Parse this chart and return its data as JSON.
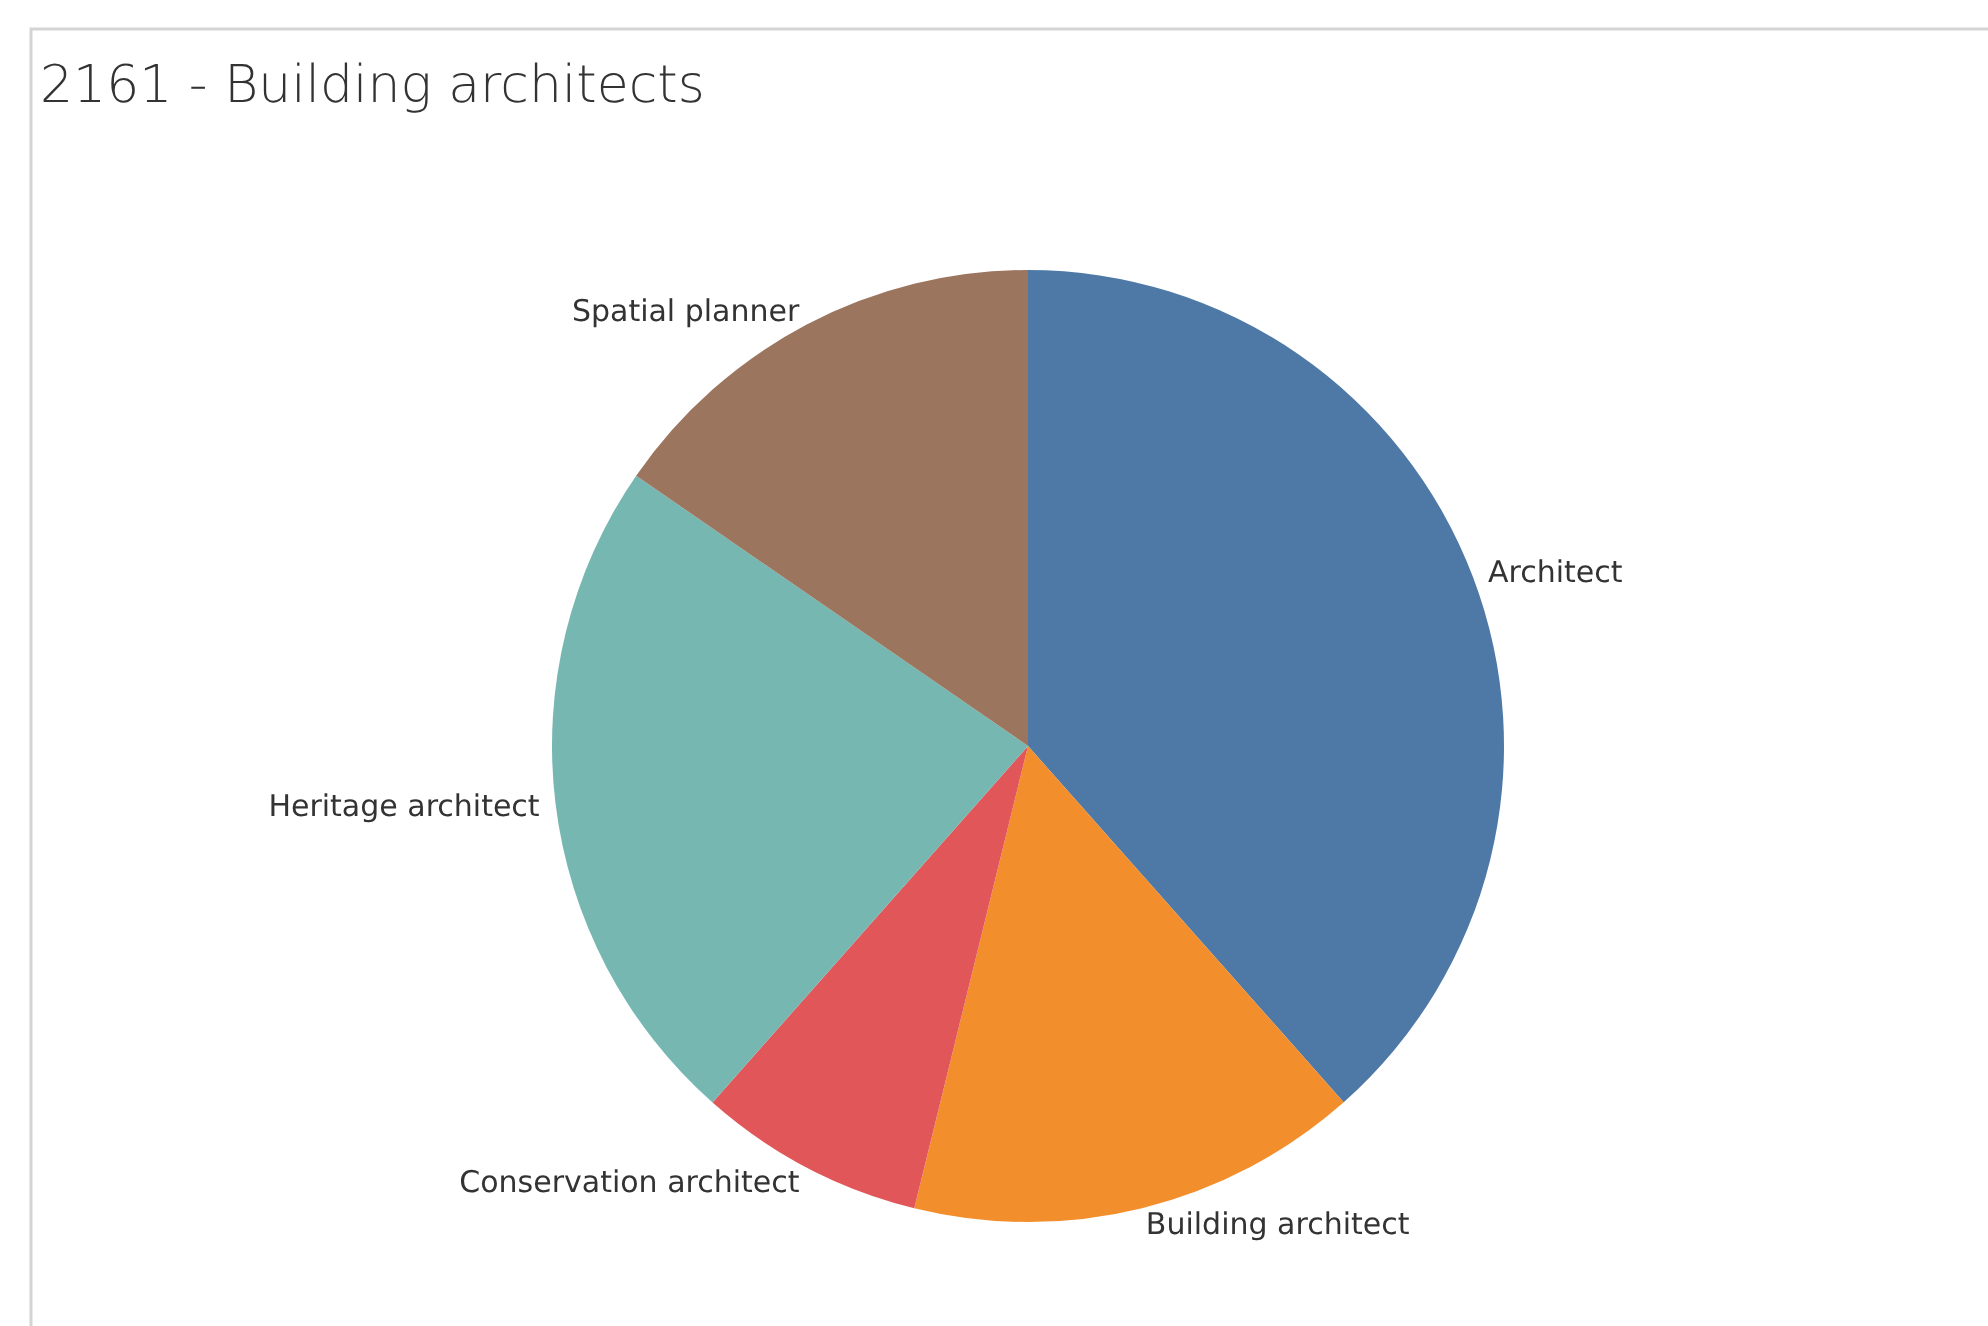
{
  "chart_data": {
    "type": "pie",
    "title": "2161 - Building architects",
    "categories": [
      "Architect",
      "Building architect",
      "Conservation architect",
      "Heritage architect",
      "Spatial planner"
    ],
    "values": [
      38.46,
      15.38,
      7.69,
      23.08,
      15.39
    ],
    "colors": [
      "#4e79a7",
      "#f28e2b",
      "#e15759",
      "#76b7b2",
      "#9c755f"
    ]
  }
}
